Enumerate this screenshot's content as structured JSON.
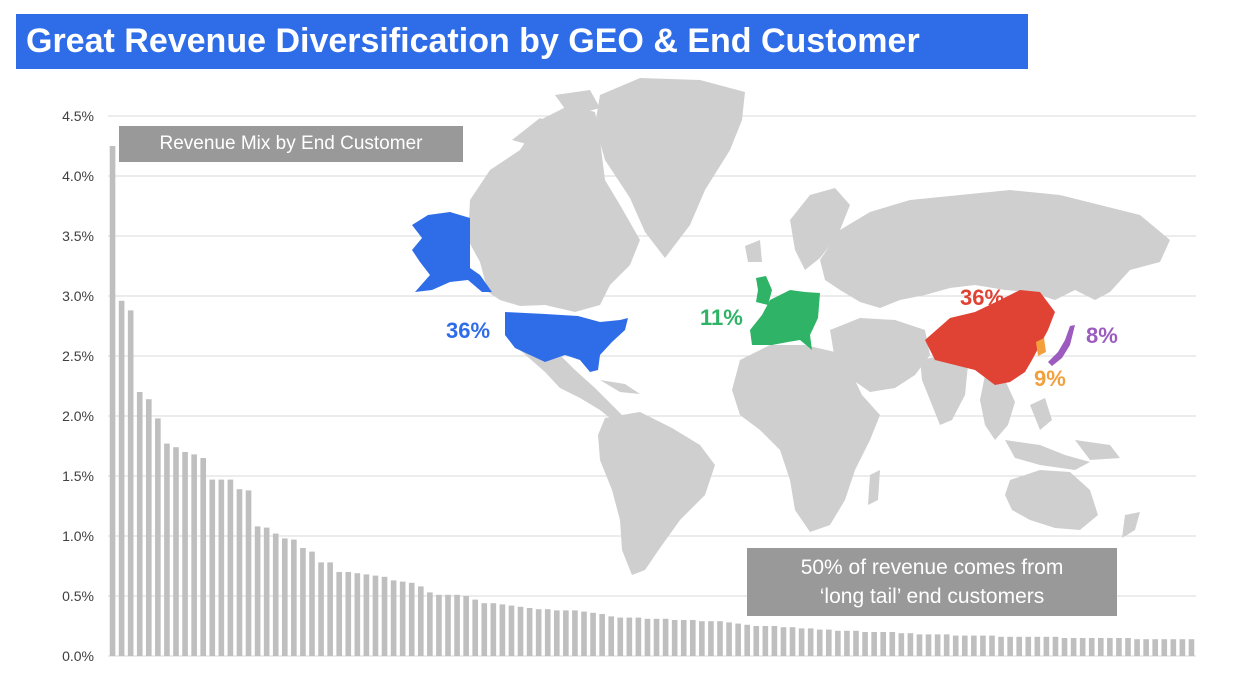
{
  "title": "Great Revenue Diversification by GEO & End Customer",
  "colors": {
    "title_bg": "#2f6de8",
    "bars": "#bfbfbf",
    "grid": "#d9d9d9",
    "map_land": "#cfcfcf",
    "usa": "#2f6de8",
    "europe": "#2fb366",
    "china": "#e04234",
    "korea": "#f2a03d",
    "japan": "#9c5bbf",
    "label_box": "#999999"
  },
  "legend_label": "Revenue Mix by End Customer",
  "note": {
    "line1": "50% of revenue comes from",
    "line2": "‘long tail’ end customers"
  },
  "geo_labels": {
    "usa": "36%",
    "europe": "11%",
    "china": "36%",
    "korea": "9%",
    "japan": "8%"
  },
  "chart_data": {
    "type": "bar",
    "title": "",
    "xlabel": "",
    "ylabel": "",
    "ylim": [
      0,
      4.5
    ],
    "y_ticks": [
      "0.0%",
      "0.5%",
      "1.0%",
      "1.5%",
      "2.0%",
      "2.5%",
      "3.0%",
      "3.5%",
      "4.0%",
      "4.5%"
    ],
    "grid": true,
    "values": [
      4.25,
      2.96,
      2.88,
      2.2,
      2.14,
      1.98,
      1.77,
      1.74,
      1.7,
      1.68,
      1.65,
      1.47,
      1.47,
      1.47,
      1.39,
      1.38,
      1.08,
      1.07,
      1.02,
      0.98,
      0.97,
      0.9,
      0.87,
      0.78,
      0.78,
      0.7,
      0.7,
      0.69,
      0.68,
      0.67,
      0.66,
      0.63,
      0.62,
      0.61,
      0.58,
      0.53,
      0.51,
      0.51,
      0.51,
      0.5,
      0.47,
      0.44,
      0.44,
      0.43,
      0.42,
      0.41,
      0.4,
      0.39,
      0.39,
      0.38,
      0.38,
      0.38,
      0.37,
      0.36,
      0.35,
      0.33,
      0.32,
      0.32,
      0.32,
      0.31,
      0.31,
      0.31,
      0.3,
      0.3,
      0.3,
      0.29,
      0.29,
      0.29,
      0.28,
      0.27,
      0.26,
      0.25,
      0.25,
      0.25,
      0.24,
      0.24,
      0.23,
      0.23,
      0.22,
      0.22,
      0.21,
      0.21,
      0.21,
      0.2,
      0.2,
      0.2,
      0.2,
      0.19,
      0.19,
      0.18,
      0.18,
      0.18,
      0.18,
      0.17,
      0.17,
      0.17,
      0.17,
      0.17,
      0.16,
      0.16,
      0.16,
      0.16,
      0.16,
      0.16,
      0.16,
      0.15,
      0.15,
      0.15,
      0.15,
      0.15,
      0.15,
      0.15,
      0.15,
      0.14,
      0.14,
      0.14,
      0.14,
      0.14,
      0.14,
      0.14
    ]
  }
}
